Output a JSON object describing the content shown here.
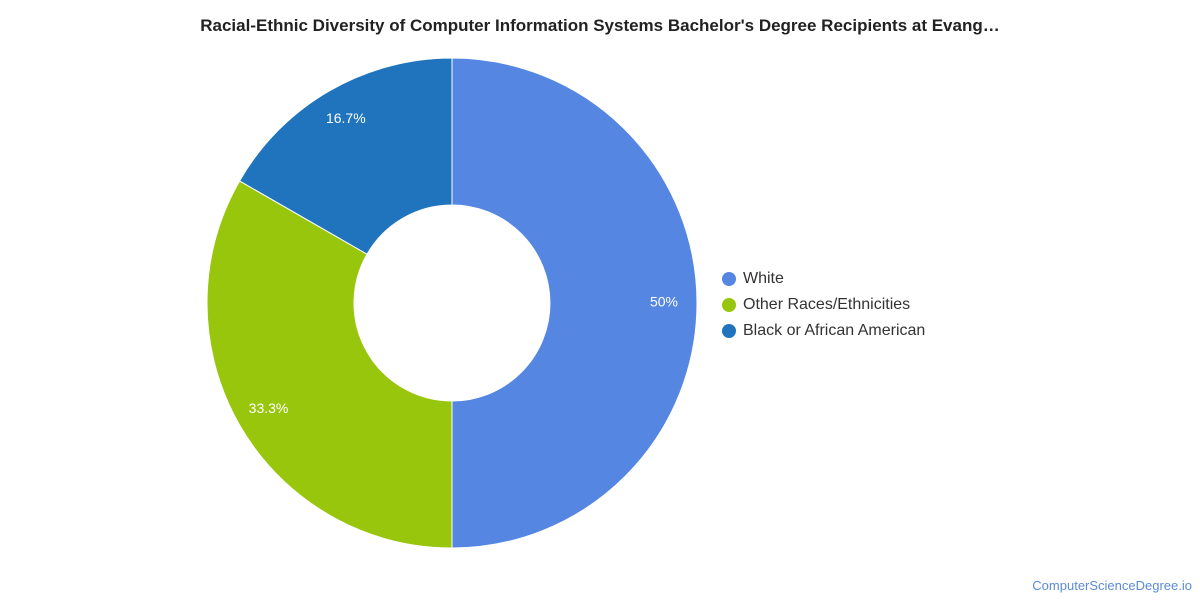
{
  "chart_data": {
    "type": "pie",
    "title": "Racial-Ethnic Diversity of Computer Information Systems Bachelor's Degree Recipients at Evang…",
    "categories": [
      "White",
      "Other Races/Ethnicities",
      "Black or African American"
    ],
    "values": [
      50,
      33.3,
      16.7
    ],
    "labels": [
      "50%",
      "33.3%",
      "16.7%"
    ],
    "colors": [
      "#5486e2",
      "#98c60d",
      "#1f74bd"
    ],
    "hole": true,
    "legend_placement": "right"
  },
  "watermark": "ComputerScienceDegree.io"
}
